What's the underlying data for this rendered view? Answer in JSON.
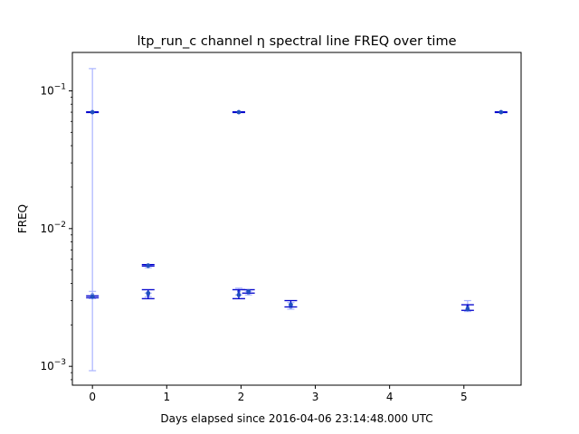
{
  "chart_data": {
    "type": "scatter",
    "title": "ltp_run_c channel η spectral line FREQ over time",
    "xlabel": "Days elapsed since 2016-04-06 23:14:48.000 UTC",
    "ylabel": "FREQ",
    "x_ticks": [
      0,
      1,
      2,
      3,
      4,
      5
    ],
    "x_tick_labels": [
      "0",
      "1",
      "2",
      "3",
      "4",
      "5"
    ],
    "xlim": [
      -0.27,
      5.77
    ],
    "y_scale": "log",
    "ylim": [
      0.00073,
      0.19
    ],
    "y_tick_labels": [
      {
        "value": 0.001,
        "base": "10",
        "exp": "−3"
      },
      {
        "value": 0.01,
        "base": "10",
        "exp": "−2"
      },
      {
        "value": 0.1,
        "base": "10",
        "exp": "−1"
      }
    ],
    "grid": false,
    "legend": "none",
    "colors": {
      "marker": "#1f4fbf",
      "primary_errorbar": "#0000cc",
      "secondary_errorbar": "#aab4ff"
    },
    "points": [
      {
        "x": 0.0,
        "y": 0.07,
        "yerr_low": 0.00093,
        "yerr_high": 0.145,
        "bar": "secondary",
        "cap": true
      },
      {
        "x": 0.0,
        "y": 0.07,
        "yerr_low": 0.0696,
        "yerr_high": 0.0704,
        "bar": "primary",
        "cap": true
      },
      {
        "x": 0.0,
        "y": 0.0033,
        "yerr_low": 0.0031,
        "yerr_high": 0.0035,
        "bar": "secondary",
        "cap": true
      },
      {
        "x": 0.0,
        "y": 0.0032,
        "yerr_low": 0.00315,
        "yerr_high": 0.00325,
        "bar": "primary",
        "cap": true
      },
      {
        "x": 0.75,
        "y": 0.0054,
        "yerr_low": 0.00535,
        "yerr_high": 0.00548,
        "bar": "primary",
        "cap": true
      },
      {
        "x": 0.75,
        "y": 0.0053,
        "yerr_low": 0.0052,
        "yerr_high": 0.0054,
        "bar": "secondary",
        "cap": true
      },
      {
        "x": 0.75,
        "y": 0.0034,
        "yerr_low": 0.0031,
        "yerr_high": 0.0036,
        "bar": "primary",
        "cap": true
      },
      {
        "x": 0.75,
        "y": 0.0033,
        "yerr_low": 0.0032,
        "yerr_high": 0.0034,
        "bar": "secondary",
        "cap": true
      },
      {
        "x": 1.97,
        "y": 0.07,
        "yerr_low": 0.0696,
        "yerr_high": 0.0704,
        "bar": "primary",
        "cap": true
      },
      {
        "x": 1.97,
        "y": 0.0033,
        "yerr_low": 0.0031,
        "yerr_high": 0.0036,
        "bar": "primary",
        "cap": true
      },
      {
        "x": 1.97,
        "y": 0.0035,
        "yerr_low": 0.0033,
        "yerr_high": 0.0037,
        "bar": "secondary",
        "cap": true
      },
      {
        "x": 2.1,
        "y": 0.0035,
        "yerr_low": 0.0034,
        "yerr_high": 0.0036,
        "bar": "primary",
        "cap": true
      },
      {
        "x": 2.1,
        "y": 0.0034,
        "yerr_low": 0.0033,
        "yerr_high": 0.0035,
        "bar": "secondary",
        "cap": true
      },
      {
        "x": 2.67,
        "y": 0.0028,
        "yerr_low": 0.0027,
        "yerr_high": 0.003,
        "bar": "primary",
        "cap": true
      },
      {
        "x": 2.67,
        "y": 0.0027,
        "yerr_low": 0.0026,
        "yerr_high": 0.0029,
        "bar": "secondary",
        "cap": true
      },
      {
        "x": 5.05,
        "y": 0.0027,
        "yerr_low": 0.0025,
        "yerr_high": 0.003,
        "bar": "secondary",
        "cap": true
      },
      {
        "x": 5.05,
        "y": 0.0026,
        "yerr_low": 0.00255,
        "yerr_high": 0.0028,
        "bar": "primary",
        "cap": true
      },
      {
        "x": 5.5,
        "y": 0.07,
        "yerr_low": 0.0696,
        "yerr_high": 0.0704,
        "bar": "primary",
        "cap": true
      }
    ]
  }
}
